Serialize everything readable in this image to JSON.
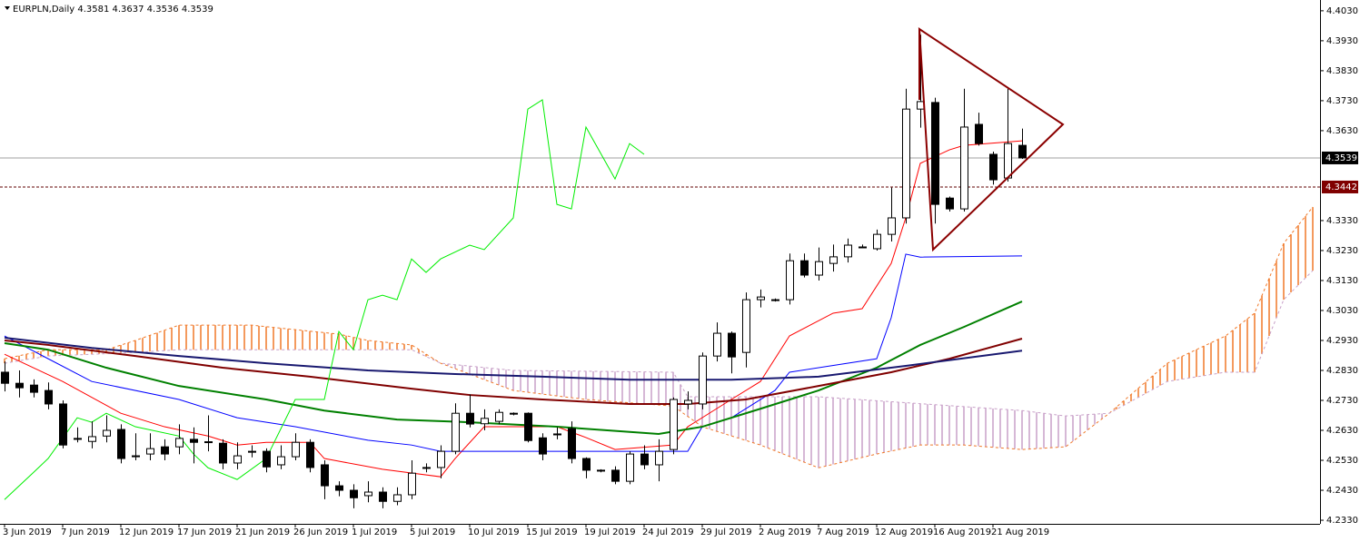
{
  "chart_data": {
    "type": "candlestick",
    "title": "EURPLN,Daily  4.3581 4.3637 4.3536 4.3539",
    "categories": [
      "3 Jun 2019",
      null,
      null,
      null,
      "7 Jun 2019",
      null,
      null,
      null,
      "12 Jun 2019",
      null,
      null,
      null,
      "17 Jun 2019",
      null,
      null,
      null,
      "21 Jun 2019",
      null,
      null,
      null,
      "26 Jun 2019",
      null,
      null,
      null,
      "1 Jul 2019",
      null,
      null,
      null,
      "5 Jul 2019",
      null,
      null,
      null,
      "10 Jul 2019",
      null,
      null,
      null,
      "15 Jul 2019",
      null,
      null,
      null,
      "19 Jul 2019",
      null,
      null,
      null,
      "24 Jul 2019",
      null,
      null,
      null,
      "29 Jul 2019",
      null,
      null,
      null,
      "2 Aug 2019",
      null,
      null,
      null,
      "7 Aug 2019",
      null,
      null,
      null,
      "12 Aug 2019",
      null,
      null,
      null,
      "16 Aug 2019",
      null,
      null,
      null,
      "21 Aug 2019",
      null,
      null
    ],
    "open": [
      4.2824,
      4.2787,
      4.2781,
      4.2763,
      4.2718,
      4.26,
      4.2593,
      4.2611,
      4.2633,
      4.2545,
      4.2551,
      4.2575,
      4.2575,
      4.26,
      4.2592,
      4.2587,
      4.2521,
      4.256,
      4.256,
      4.2515,
      4.2542,
      4.259,
      4.2515,
      4.2445,
      4.243,
      4.2412,
      4.2424,
      4.2393,
      4.2415,
      4.2505,
      4.2506,
      4.256,
      4.2687,
      4.2652,
      4.266,
      4.2687,
      4.2687,
      4.2605,
      4.2615,
      4.2636,
      4.2536,
      4.2497,
      4.2497,
      4.246,
      4.2551,
      4.2515,
      4.2566,
      4.2718,
      4.2718,
      4.2878,
      4.2954,
      4.289,
      4.3066,
      4.3066,
      4.3066,
      4.3196,
      4.3148,
      4.3187,
      4.3209,
      4.3242,
      4.3236,
      4.3284,
      4.3339,
      4.3702,
      4.3724,
      4.3405,
      4.3369,
      4.3651,
      4.3551,
      4.3472,
      4.3581
    ],
    "high": [
      4.286,
      4.283,
      4.28,
      4.279,
      4.273,
      4.264,
      4.266,
      4.268,
      4.265,
      4.262,
      4.262,
      4.26,
      4.265,
      4.264,
      4.268,
      4.26,
      4.259,
      4.258,
      4.257,
      4.258,
      4.262,
      4.26,
      4.253,
      4.246,
      4.245,
      4.246,
      4.244,
      4.244,
      4.253,
      4.252,
      4.258,
      4.272,
      4.275,
      4.27,
      4.27,
      4.269,
      4.269,
      4.262,
      4.264,
      4.266,
      4.254,
      4.25,
      4.251,
      4.256,
      4.258,
      4.26,
      4.274,
      4.276,
      4.289,
      4.299,
      4.296,
      4.309,
      4.31,
      4.307,
      4.322,
      4.322,
      4.324,
      4.325,
      4.327,
      4.325,
      4.33,
      4.344,
      4.377,
      4.395,
      4.374,
      4.341,
      4.377,
      4.369,
      4.356,
      4.377,
      4.3637
    ],
    "low": [
      4.276,
      4.274,
      4.274,
      4.27,
      4.257,
      4.259,
      4.257,
      4.259,
      4.252,
      4.253,
      4.253,
      4.253,
      4.255,
      4.252,
      4.256,
      4.25,
      4.25,
      4.254,
      4.249,
      4.25,
      4.253,
      4.249,
      4.24,
      4.241,
      4.237,
      4.239,
      4.237,
      4.238,
      4.24,
      4.249,
      4.247,
      4.255,
      4.264,
      4.263,
      4.265,
      4.268,
      4.259,
      4.253,
      4.26,
      4.252,
      4.247,
      4.249,
      4.245,
      4.245,
      4.25,
      4.246,
      4.255,
      4.27,
      4.27,
      4.286,
      4.282,
      4.284,
      4.304,
      4.306,
      4.305,
      4.314,
      4.313,
      4.316,
      4.319,
      4.324,
      4.323,
      4.326,
      4.332,
      4.364,
      4.332,
      4.336,
      4.336,
      4.358,
      4.345,
      4.346,
      4.3536
    ],
    "close": [
      4.2787,
      4.2772,
      4.2757,
      4.2718,
      4.2581,
      4.2603,
      4.2609,
      4.263,
      4.2536,
      4.2542,
      4.2569,
      4.2551,
      4.2603,
      4.259,
      4.259,
      4.2521,
      4.2545,
      4.256,
      4.2508,
      4.2542,
      4.259,
      4.2506,
      4.2445,
      4.243,
      4.2405,
      4.2424,
      4.2393,
      4.2415,
      4.2487,
      4.2506,
      4.256,
      4.2687,
      4.2651,
      4.267,
      4.269,
      4.2687,
      4.2596,
      4.2551,
      4.2618,
      4.2536,
      4.2497,
      4.2497,
      4.246,
      4.2551,
      4.2515,
      4.256,
      4.2733,
      4.273,
      4.2878,
      4.2954,
      4.2875,
      4.3066,
      4.3075,
      4.3066,
      4.3196,
      4.3148,
      4.3193,
      4.3209,
      4.3248,
      4.3242,
      4.3284,
      4.3339,
      4.3702,
      4.3727,
      4.3384,
      4.3369,
      4.3642,
      4.3587,
      4.3466,
      4.3587,
      4.3539
    ],
    "candle_colors": {
      "up": "#ffffff",
      "down": "#000000",
      "outline": "#000000"
    },
    "indicators": [
      {
        "color": "#ff0000",
        "width": 1,
        "x": [
          0,
          4,
          8,
          11,
          14,
          16,
          18,
          21,
          22,
          26,
          30,
          31,
          33,
          38,
          40,
          42,
          46,
          47,
          50,
          52,
          54,
          57,
          59,
          61,
          62,
          63,
          65,
          66,
          70
        ],
        "values": [
          4.2884,
          4.2793,
          4.2687,
          4.2642,
          4.2611,
          4.2581,
          4.259,
          4.259,
          4.2536,
          4.25,
          4.2475,
          4.2536,
          4.2642,
          4.2642,
          4.2606,
          4.2566,
          4.2581,
          4.2642,
          4.2733,
          4.2793,
          4.2945,
          4.3021,
          4.3036,
          4.3187,
          4.3339,
          4.3521,
          4.3566,
          4.3581,
          4.3596
        ]
      },
      {
        "color": "#0000ff",
        "width": 1,
        "x": [
          0,
          3,
          6,
          12,
          16,
          20,
          25,
          28,
          30,
          31,
          35,
          45,
          47,
          48,
          50,
          53,
          54,
          60,
          61,
          62,
          63,
          70
        ],
        "values": [
          4.2945,
          4.2869,
          4.2793,
          4.2733,
          4.2672,
          4.2642,
          4.2597,
          4.2581,
          4.256,
          4.256,
          4.256,
          4.256,
          4.256,
          4.2642,
          4.2672,
          4.2763,
          4.2824,
          4.2869,
          4.3006,
          4.3218,
          4.3208,
          4.3212
        ]
      },
      {
        "color": "#008000",
        "width": 2,
        "x": [
          0,
          3,
          7,
          12,
          18,
          22,
          27,
          32,
          38,
          45,
          48,
          52,
          56,
          60,
          63,
          66,
          70
        ],
        "values": [
          4.2921,
          4.2899,
          4.2839,
          4.2778,
          4.2733,
          4.2696,
          4.2666,
          4.2657,
          4.2642,
          4.2618,
          4.2642,
          4.2702,
          4.2763,
          4.2839,
          4.2915,
          4.2975,
          4.306
        ]
      },
      {
        "color": "#800000",
        "width": 2,
        "x": [
          0,
          3,
          9,
          15,
          21,
          28,
          32,
          37,
          43,
          47,
          51,
          56,
          61,
          65,
          70
        ],
        "values": [
          4.293,
          4.2915,
          4.2878,
          4.2839,
          4.2809,
          4.2769,
          4.2748,
          4.2733,
          4.2718,
          4.2718,
          4.2733,
          4.2778,
          4.2824,
          4.2869,
          4.2936
        ]
      },
      {
        "color": "#191970",
        "width": 2,
        "x": [
          0,
          6,
          12,
          18,
          25,
          31,
          37,
          43,
          50,
          56,
          62,
          70
        ],
        "values": [
          4.2939,
          4.2905,
          4.2878,
          4.2854,
          4.283,
          4.2818,
          4.2809,
          4.2799,
          4.2799,
          4.2809,
          4.2845,
          4.2896
        ]
      },
      {
        "color": "#00ee00",
        "width": 1,
        "x": [
          0,
          2,
          3,
          5,
          6,
          7,
          9,
          12,
          13,
          14,
          16,
          18,
          20,
          22,
          23,
          24,
          25,
          26,
          27,
          28,
          29,
          30,
          32,
          33,
          35,
          36,
          37,
          38,
          39,
          40,
          42,
          43,
          44
        ],
        "values": [
          4.2399,
          4.249,
          4.2536,
          4.2672,
          4.2657,
          4.2687,
          4.2642,
          4.2611,
          4.2551,
          4.2505,
          4.2466,
          4.2536,
          4.2733,
          4.2733,
          4.296,
          4.2899,
          4.3066,
          4.3081,
          4.3066,
          4.3202,
          4.3157,
          4.3202,
          4.3248,
          4.3233,
          4.3339,
          4.3702,
          4.3733,
          4.3384,
          4.3369,
          4.3642,
          4.3469,
          4.3587,
          4.3551
        ]
      }
    ],
    "cloud": {
      "span_a": {
        "color": "#f07828",
        "x": [
          0,
          3,
          7,
          9,
          12,
          17,
          23,
          25,
          28,
          30,
          35,
          40,
          46,
          48,
          52,
          56,
          60,
          63,
          66,
          70,
          73,
          76,
          80,
          84,
          86,
          88,
          90
        ],
        "values": [
          4.2869,
          4.2899,
          4.2899,
          4.293,
          4.2981,
          4.2981,
          4.2951,
          4.293,
          4.2915,
          4.2854,
          4.2763,
          4.2733,
          4.2711,
          4.2642,
          4.2581,
          4.2505,
          4.2551,
          4.2581,
          4.2581,
          4.2566,
          4.2575,
          4.2687,
          4.2854,
          4.2945,
          4.3021,
          4.3254,
          4.3375
        ]
      },
      "span_b": {
        "color": "#c8a0c8",
        "x": [
          0,
          3,
          9,
          12,
          17,
          23,
          28,
          30,
          35,
          46,
          47,
          52,
          56,
          70,
          73,
          76,
          80,
          84,
          86,
          88,
          90
        ],
        "values": [
          4.2854,
          4.2878,
          4.289,
          4.2899,
          4.2899,
          4.2899,
          4.2899,
          4.2854,
          4.283,
          4.2824,
          4.2742,
          4.2742,
          4.2742,
          4.2696,
          4.2678,
          4.2687,
          4.2793,
          4.2824,
          4.2824,
          4.3066,
          4.3163
        ]
      }
    },
    "price_lines": [
      {
        "value": 4.3539,
        "color": "#a0a0a0",
        "label_bg": "#000000",
        "dashed": false
      },
      {
        "value": 4.3442,
        "color": "#600000",
        "label_bg": "#800000",
        "dashed": true
      }
    ],
    "ylim": [
      4.2318,
      4.4066
    ],
    "yticks": [
      {
        "value": 4.233,
        "label": "4.2330"
      },
      {
        "value": 4.243,
        "label": "4.2430"
      },
      {
        "value": 4.253,
        "label": "4.2530"
      },
      {
        "value": 4.263,
        "label": "4.2630"
      },
      {
        "value": 4.273,
        "label": "4.2730"
      },
      {
        "value": 4.283,
        "label": "4.2830"
      },
      {
        "value": 4.293,
        "label": "4.2930"
      },
      {
        "value": 4.303,
        "label": "4.3030"
      },
      {
        "value": 4.313,
        "label": "4.3130"
      },
      {
        "value": 4.323,
        "label": "4.3230"
      },
      {
        "value": 4.333,
        "label": "4.3330"
      },
      {
        "value": 4.363,
        "label": "4.3630"
      },
      {
        "value": 4.373,
        "label": "4.3730"
      },
      {
        "value": 4.383,
        "label": "4.3830"
      },
      {
        "value": 4.393,
        "label": "4.3930"
      },
      {
        "value": 4.403,
        "label": "4.4030"
      }
    ]
  }
}
